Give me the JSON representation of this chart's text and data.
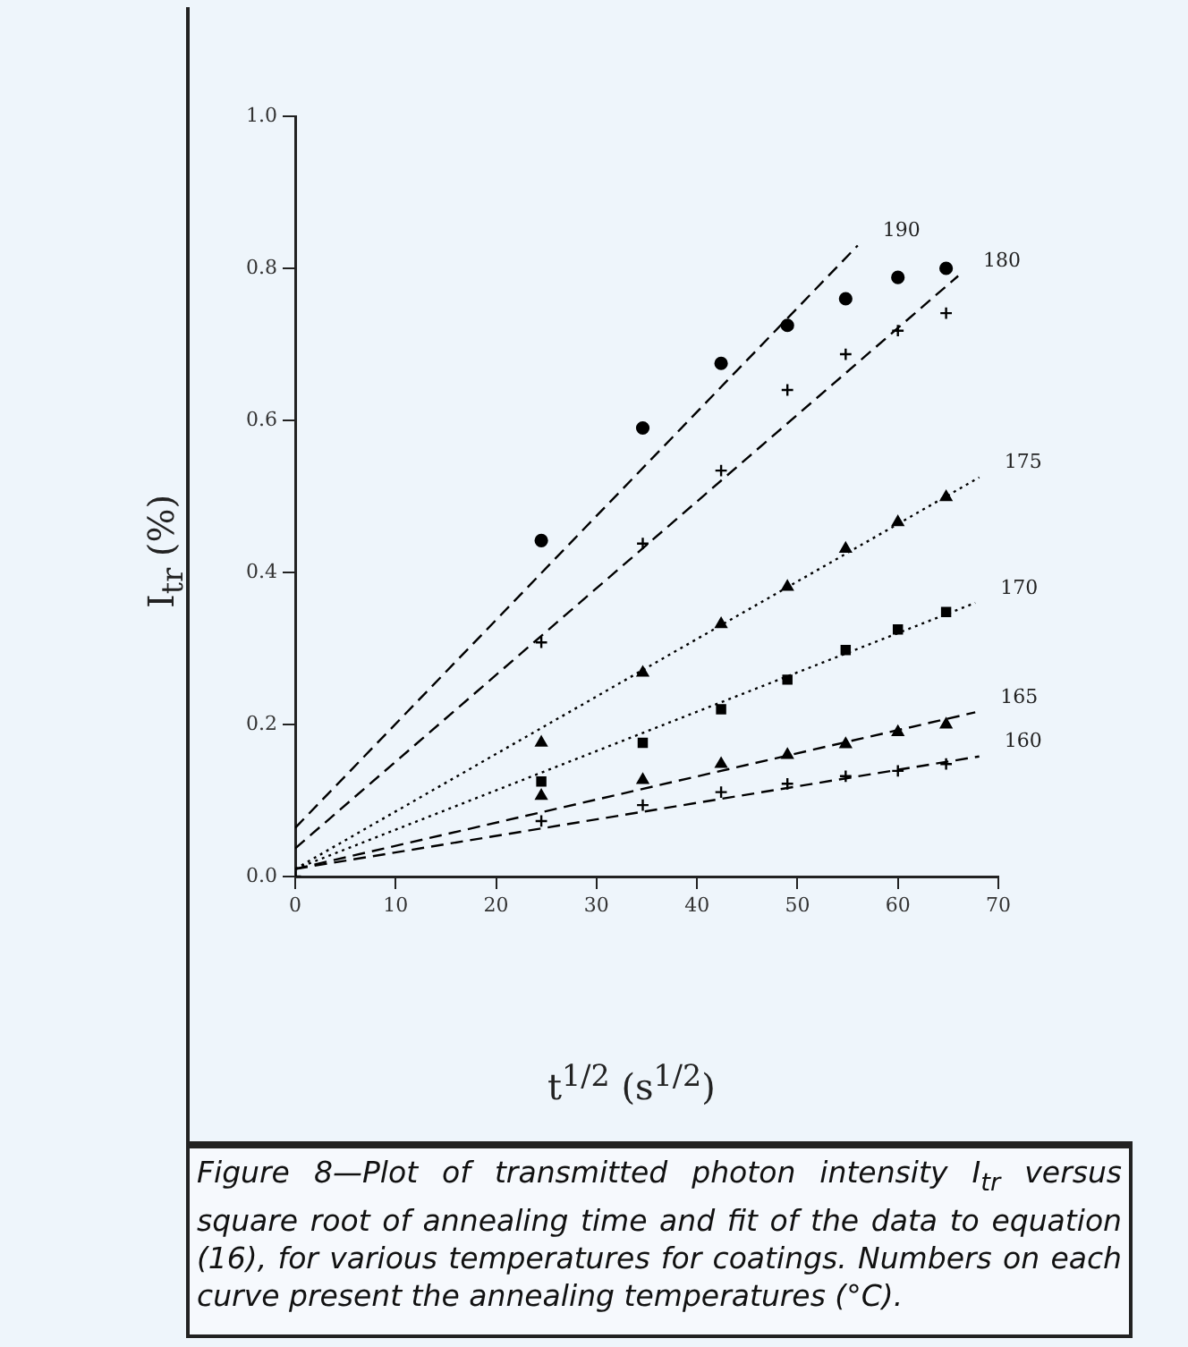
{
  "chart_data": {
    "type": "scatter",
    "xlabel": "t$^{1/2}$ (s$^{1/2}$)",
    "ylabel": "I$_{tr}$ (%)",
    "xlim": [
      0,
      70
    ],
    "xticks": [
      0,
      10,
      20,
      30,
      40,
      50,
      60,
      70
    ],
    "ylim": [
      0,
      1.0
    ],
    "yticks": [
      {
        "value": 0,
        "label": "0.0"
      },
      0.2,
      0.4,
      0.6,
      0.8,
      {
        "value": 1.0,
        "label": "1.0"
      }
    ],
    "grid": false,
    "legend": false,
    "series": [
      {
        "type": "scatter",
        "marker": "cross",
        "color": "#000000",
        "x": [
          0,
          24.5,
          34.6,
          42.4,
          49.0,
          54.8,
          60.0,
          64.8
        ],
        "values": [
          0,
          0.073,
          0.094,
          0.111,
          0.122,
          0.132,
          0.139,
          0.148
        ]
      },
      {
        "type": "scatter",
        "marker": "triangle",
        "color": "#000000",
        "x": [
          24.5,
          34.6,
          42.4,
          49.0,
          54.8,
          60.0,
          64.8
        ],
        "values": [
          0.106,
          0.127,
          0.148,
          0.16,
          0.174,
          0.19,
          0.2
        ]
      },
      {
        "type": "scatter",
        "marker": "square",
        "color": "#000000",
        "x": [
          24.5,
          34.6,
          42.4,
          49.0,
          54.8,
          60.0,
          64.8
        ],
        "values": [
          0.125,
          0.176,
          0.22,
          0.259,
          0.298,
          0.325,
          0.348
        ]
      },
      {
        "type": "scatter",
        "marker": "triangle",
        "color": "#000000",
        "x": [
          24.5,
          34.6,
          42.4,
          49.0,
          54.8,
          60.0,
          64.8
        ],
        "values": [
          0.176,
          0.268,
          0.332,
          0.381,
          0.431,
          0.466,
          0.499
        ]
      },
      {
        "type": "scatter",
        "marker": "cross",
        "color": "#000000",
        "x": [
          24.5,
          34.6,
          42.4,
          49.0,
          54.8,
          60.0,
          64.8
        ],
        "values": [
          0.308,
          0.438,
          0.534,
          0.64,
          0.687,
          0.718,
          0.741
        ]
      },
      {
        "type": "scatter",
        "marker": "circle",
        "color": "#000000",
        "x": [
          24.5,
          34.6,
          42.4,
          49.0,
          54.8,
          60.0,
          64.8
        ],
        "values": [
          0.442,
          0.59,
          0.675,
          0.725,
          0.76,
          0.788,
          0.8
        ]
      },
      {
        "type": "line",
        "line_style": "dashed",
        "marker": "none",
        "color": "#000000",
        "x": [
          0,
          68.1
        ],
        "values": [
          0.01,
          0.158
        ]
      },
      {
        "type": "line",
        "line_style": "dashed",
        "marker": "none",
        "color": "#000000",
        "x": [
          0,
          67.7
        ],
        "values": [
          0.01,
          0.216
        ]
      },
      {
        "type": "line",
        "line_style": "dotted",
        "marker": "none",
        "color": "#000000",
        "x": [
          0,
          67.7
        ],
        "values": [
          0.01,
          0.36
        ]
      },
      {
        "type": "line",
        "line_style": "dotted",
        "marker": "none",
        "color": "#000000",
        "x": [
          0,
          68.1
        ],
        "values": [
          0.01,
          0.525
        ]
      },
      {
        "type": "line",
        "line_style": "dashed",
        "marker": "none",
        "color": "#000000",
        "x": [
          0,
          66.0
        ],
        "values": [
          0.037,
          0.79
        ]
      },
      {
        "type": "line",
        "line_style": "dashed",
        "marker": "none",
        "color": "#000000",
        "x": [
          0,
          56.0
        ],
        "values": [
          0.064,
          0.83
        ]
      }
    ],
    "annotations": [
      {
        "text": "160",
        "x": 68.1,
        "y": 0.158
      },
      {
        "text": "165",
        "x": 67.7,
        "y": 0.216
      },
      {
        "text": "170",
        "x": 67.7,
        "y": 0.36
      },
      {
        "text": "175",
        "x": 68.1,
        "y": 0.525
      },
      {
        "text": "180",
        "x": 66.0,
        "y": 0.79
      },
      {
        "text": "190",
        "x": 56.0,
        "y": 0.83
      },
      "Figure 8—Plot of transmitted photon intensity I$_{tr}$ versus square root of annealing time and fit of the data to equation (16), for various temperatures for coatings. Numbers on each curve present the annealing temperatures (°C)."
    ]
  }
}
